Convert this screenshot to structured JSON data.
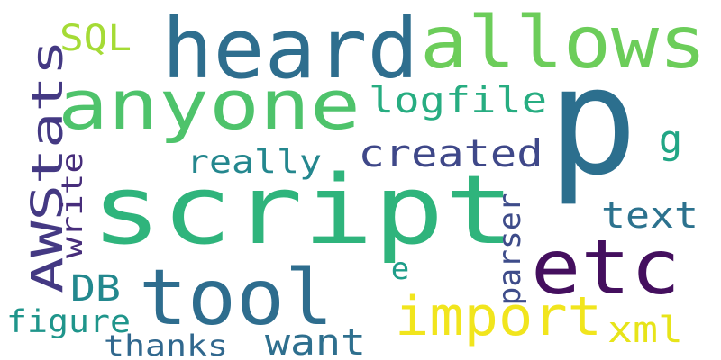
{
  "word_cloud": {
    "words": [
      {
        "text": "p",
        "color": "#2c6f8e"
      },
      {
        "text": "script",
        "color": "#2fb47c"
      },
      {
        "text": "heard",
        "color": "#2e6e8e"
      },
      {
        "text": "allows",
        "color": "#6ccd5a"
      },
      {
        "text": "anyone",
        "color": "#4ec36b"
      },
      {
        "text": "tool",
        "color": "#2e6d8e"
      },
      {
        "text": "etc",
        "color": "#440f5e"
      },
      {
        "text": "AWStats",
        "color": "#443983"
      },
      {
        "text": "import",
        "color": "#f1e51d"
      },
      {
        "text": "logfile",
        "color": "#27ad81"
      },
      {
        "text": "created",
        "color": "#3f4889"
      },
      {
        "text": "really",
        "color": "#24878e"
      },
      {
        "text": "text",
        "color": "#2c728e"
      },
      {
        "text": "SQL",
        "color": "#a5db36"
      },
      {
        "text": "g",
        "color": "#21a685"
      },
      {
        "text": "write",
        "color": "#472d7b"
      },
      {
        "text": "parser",
        "color": "#3e4c8a"
      },
      {
        "text": "xml",
        "color": "#e7e419"
      },
      {
        "text": "DB",
        "color": "#23888e"
      },
      {
        "text": "want",
        "color": "#2e6f8e"
      },
      {
        "text": "figure",
        "color": "#1f958b"
      },
      {
        "text": "thanks",
        "color": "#31688e"
      },
      {
        "text": "e",
        "color": "#1e9d89"
      }
    ]
  }
}
